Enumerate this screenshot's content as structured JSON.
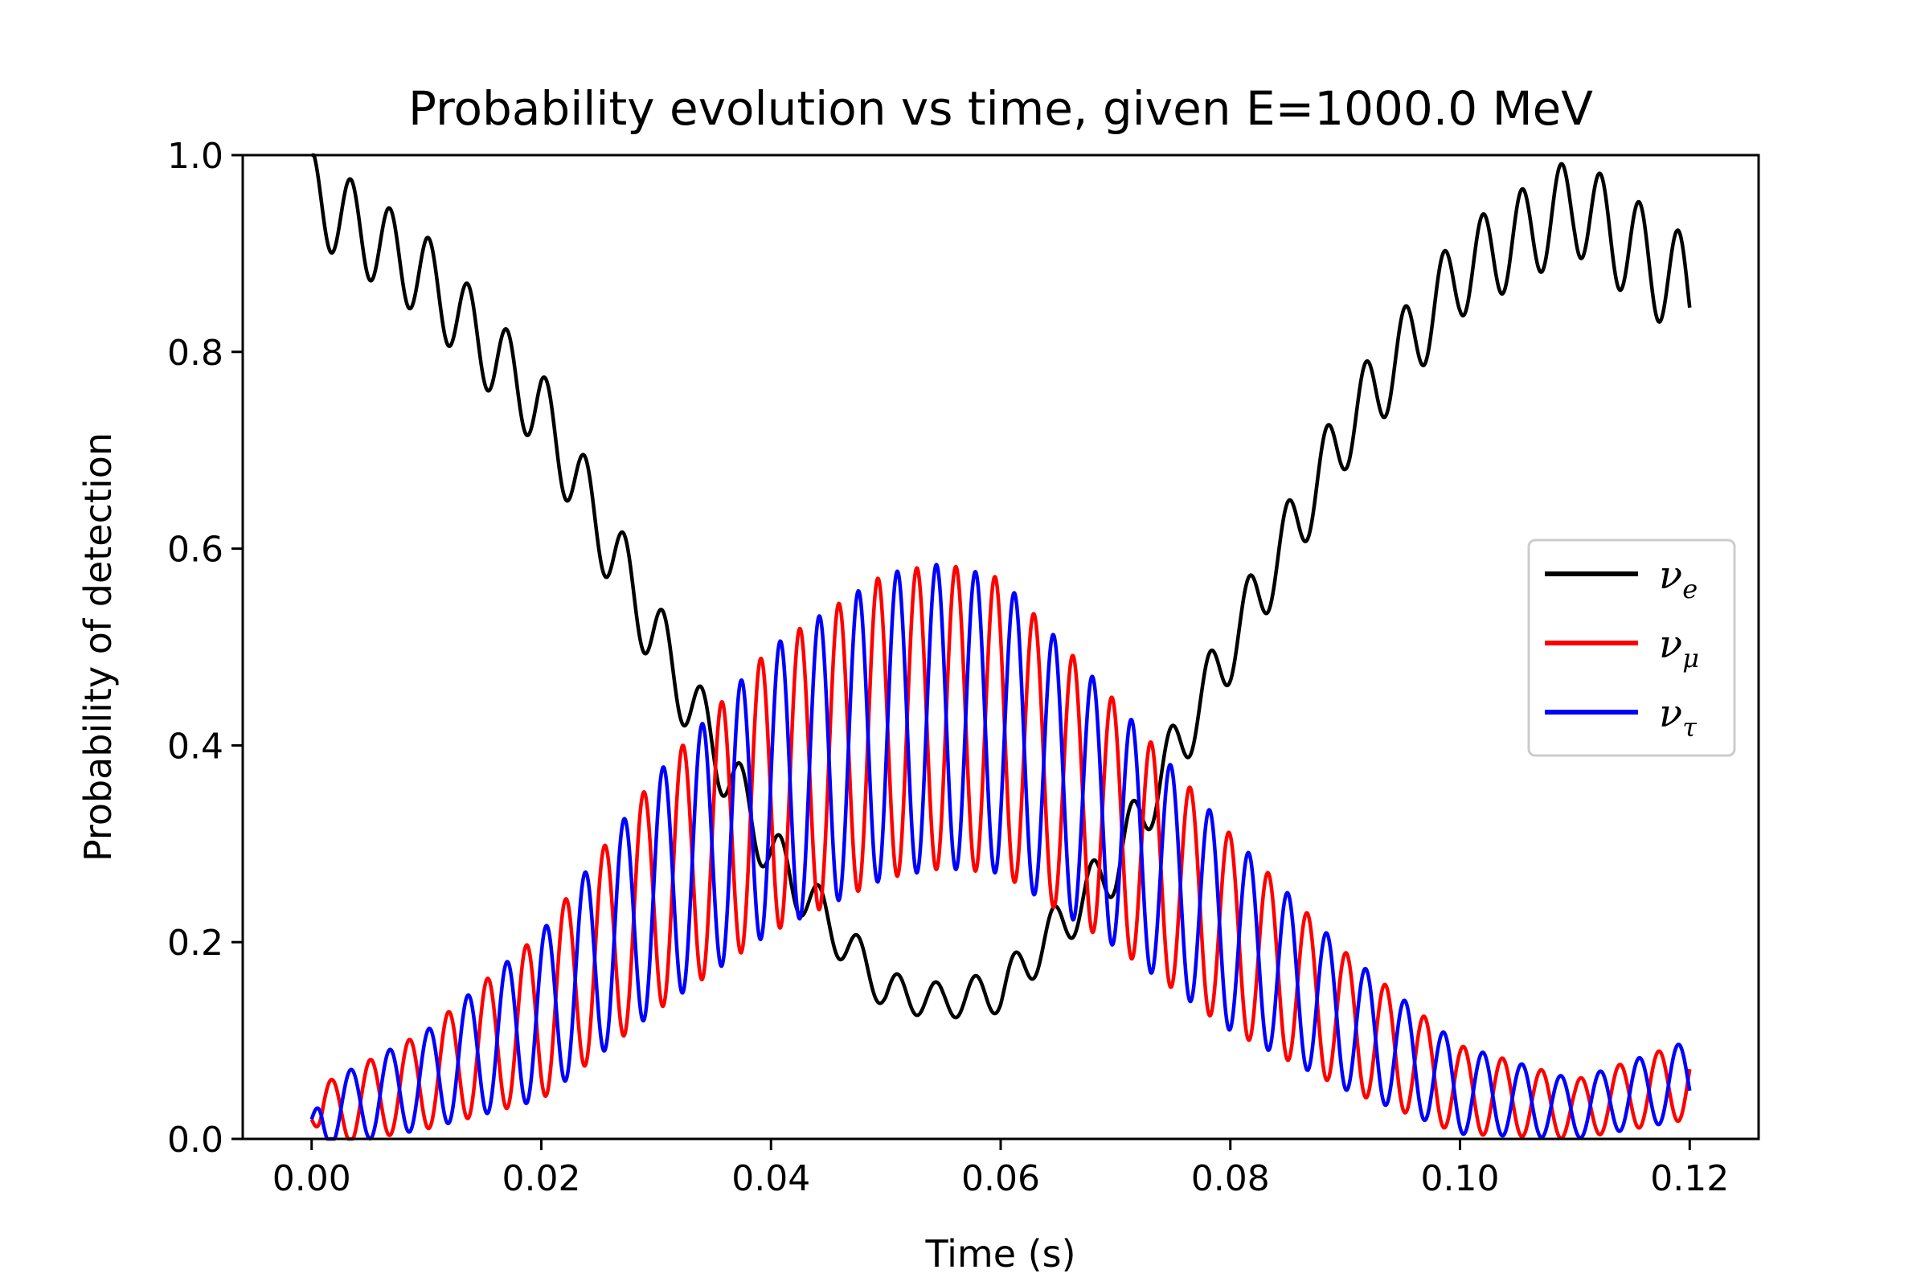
{
  "chart_data": {
    "type": "line",
    "title": "Probability evolution vs time, given E=1000.0 MeV",
    "xlabel": "Time (s)",
    "ylabel": "Probability of detection",
    "xlim": [
      -0.006,
      0.126
    ],
    "ylim": [
      0.0,
      1.0
    ],
    "xticks": [
      "0.00",
      "0.02",
      "0.04",
      "0.06",
      "0.08",
      "0.10",
      "0.12"
    ],
    "yticks": [
      "0.0",
      "0.2",
      "0.4",
      "0.6",
      "0.8",
      "1.0"
    ],
    "grid": false,
    "legend_position": "center-right",
    "series": [
      {
        "name": "ν_e",
        "label_main": "ν",
        "label_sub": "e",
        "color": "#000000",
        "envelope_points": [
          [
            0.0,
            0.96
          ],
          [
            0.01,
            0.875
          ],
          [
            0.02,
            0.74
          ],
          [
            0.03,
            0.51
          ],
          [
            0.04,
            0.29
          ],
          [
            0.05,
            0.15
          ],
          [
            0.055,
            0.14
          ],
          [
            0.06,
            0.15
          ],
          [
            0.07,
            0.28
          ],
          [
            0.08,
            0.5
          ],
          [
            0.09,
            0.72
          ],
          [
            0.1,
            0.88
          ],
          [
            0.11,
            0.95
          ],
          [
            0.12,
            0.86
          ]
        ],
        "ripple_amplitude_points": [
          [
            0.0,
            0.045
          ],
          [
            0.03,
            0.04
          ],
          [
            0.05,
            0.02
          ],
          [
            0.055,
            0.018
          ],
          [
            0.07,
            0.03
          ],
          [
            0.1,
            0.045
          ],
          [
            0.12,
            0.055
          ]
        ]
      },
      {
        "name": "ν_μ",
        "label_main": "ν",
        "label_sub": "μ",
        "color": "#ff0000"
      },
      {
        "name": "ν_τ",
        "label_main": "ν",
        "label_sub": "τ",
        "color": "#0000ff"
      }
    ],
    "oscillating_pair": {
      "envelope_points": [
        [
          0.0,
          0.02
        ],
        [
          0.01,
          0.06
        ],
        [
          0.02,
          0.125
        ],
        [
          0.03,
          0.25
        ],
        [
          0.04,
          0.355
        ],
        [
          0.05,
          0.42
        ],
        [
          0.055,
          0.43
        ],
        [
          0.06,
          0.42
        ],
        [
          0.07,
          0.32
        ],
        [
          0.08,
          0.21
        ],
        [
          0.09,
          0.12
        ],
        [
          0.1,
          0.05
        ],
        [
          0.11,
          0.03
        ],
        [
          0.12,
          0.06
        ]
      ],
      "amplitude_points": [
        [
          0.0,
          0.03
        ],
        [
          0.01,
          0.05
        ],
        [
          0.02,
          0.085
        ],
        [
          0.03,
          0.12
        ],
        [
          0.04,
          0.145
        ],
        [
          0.05,
          0.155
        ],
        [
          0.055,
          0.155
        ],
        [
          0.06,
          0.15
        ],
        [
          0.07,
          0.125
        ],
        [
          0.08,
          0.1
        ],
        [
          0.09,
          0.07
        ],
        [
          0.1,
          0.045
        ],
        [
          0.11,
          0.03
        ],
        [
          0.12,
          0.04
        ]
      ],
      "oscillation_period_s": 0.0034,
      "t_end": 0.12
    }
  }
}
